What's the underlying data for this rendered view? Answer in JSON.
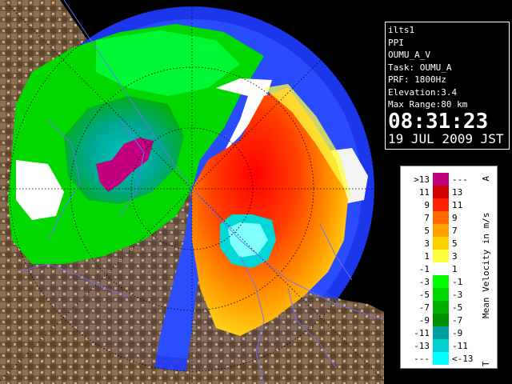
{
  "info": {
    "site": "ilts1",
    "scan_mode": "PPI",
    "product": "OUMU_A_V",
    "task": "Task: OUMU_A",
    "prf": "PRF: 1800Hz",
    "elevation": "Elevation:3.4",
    "max_range": "Max Range:80 km",
    "time": "08:31:23",
    "date": "19 JUL 2009 JST"
  },
  "legend": {
    "title": "Mean Velocity in m/s",
    "top_marker": "A",
    "bottom_marker": "T",
    "bins": [
      {
        "left": ">13",
        "right": "---",
        "color": "#c0007c"
      },
      {
        "left": "11",
        "right": "13",
        "color": "#d30000"
      },
      {
        "left": "9",
        "right": "11",
        "color": "#ff2000"
      },
      {
        "left": "7",
        "right": "9",
        "color": "#ff6a00"
      },
      {
        "left": "5",
        "right": "7",
        "color": "#ffa000"
      },
      {
        "left": "3",
        "right": "5",
        "color": "#ffd000"
      },
      {
        "left": "1",
        "right": "3",
        "color": "#ffff40"
      },
      {
        "left": "-1",
        "right": "1",
        "color": "#ffffff"
      },
      {
        "left": "-3",
        "right": "-1",
        "color": "#00ff00"
      },
      {
        "left": "-5",
        "right": "-3",
        "color": "#00d800"
      },
      {
        "left": "-7",
        "right": "-5",
        "color": "#00b000"
      },
      {
        "left": "-9",
        "right": "-7",
        "color": "#009000"
      },
      {
        "left": "-11",
        "right": "-9",
        "color": "#00a0a0"
      },
      {
        "left": "-13",
        "right": "-11",
        "color": "#00d0d0"
      },
      {
        "left": "---",
        "right": "<-13",
        "color": "#00ffff"
      }
    ]
  },
  "colors": {
    "land": "#7a6248",
    "sea": "#000000",
    "range_far": "#1e3cff",
    "range_near": "#3c64ff",
    "coast_line": "#6a6aff",
    "rivers": "#6a6aff"
  }
}
